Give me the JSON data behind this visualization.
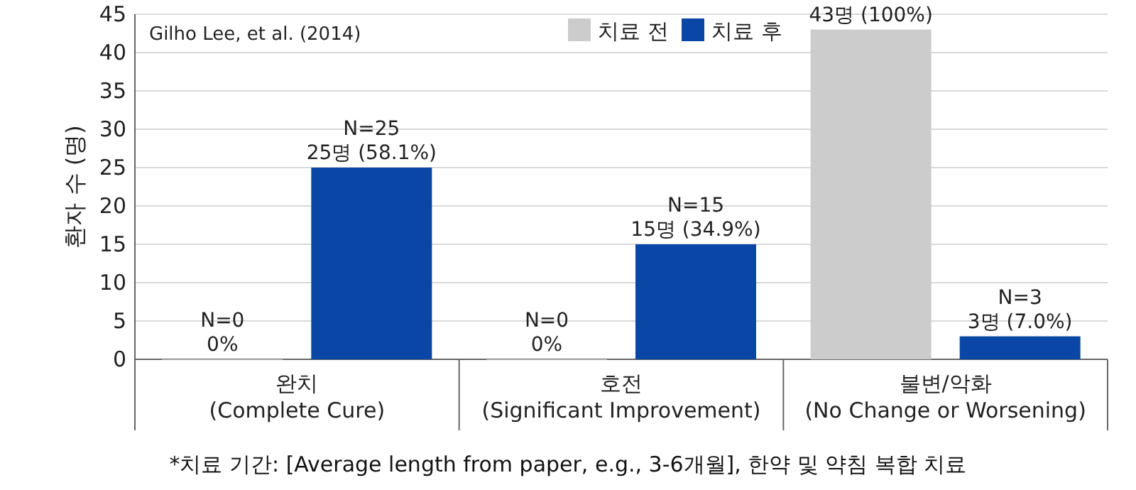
{
  "chart_data": {
    "type": "bar",
    "categories": [
      "완치\n(Complete Cure)",
      "호전\n(Significant Improvement)",
      "불변/악화\n(No Change or Worsening)"
    ],
    "series": [
      {
        "name": "치료 전",
        "color": "#cccccc",
        "values": [
          0,
          0,
          43
        ],
        "value_labels": [
          "N=0\n0%",
          "N=0\n0%",
          "43명 (100%)"
        ]
      },
      {
        "name": "치료 후",
        "color": "#0a46a5",
        "values": [
          25,
          15,
          3
        ],
        "value_labels": [
          "N=25\n25명 (58.1%)",
          "N=15\n15명 (34.9%)",
          "N=3\n3명 (7.0%)"
        ]
      }
    ],
    "ylabel": "환자 수 (명)",
    "ylim": [
      0,
      45
    ],
    "yticks": [
      0,
      5,
      10,
      15,
      20,
      25,
      30,
      35,
      40,
      45
    ],
    "grid": "y",
    "legend": "top",
    "annotations": [
      "Gilho Lee, et al. (2014)",
      "*치료 기간: [Average length from paper, e.g., 3-6개월], 한약 및 약침 복합 치료"
    ]
  }
}
